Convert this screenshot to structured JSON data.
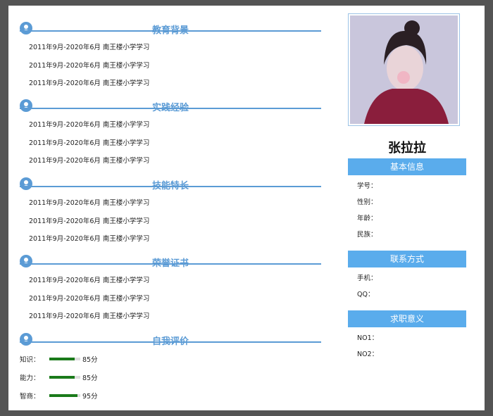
{
  "sections": [
    {
      "title": "教育背景",
      "items": [
        "2011年9月-2020年6月 南王楼小学学习",
        "2011年9月-2020年6月 南王楼小学学习",
        "2011年9月-2020年6月 南王楼小学学习"
      ]
    },
    {
      "title": "实践经验",
      "items": [
        "2011年9月-2020年6月 南王楼小学学习",
        "2011年9月-2020年6月 南王楼小学学习",
        "2011年9月-2020年6月 南王楼小学学习"
      ]
    },
    {
      "title": "技能特长",
      "items": [
        "2011年9月-2020年6月 南王楼小学学习",
        "2011年9月-2020年6月 南王楼小学学习",
        "2011年9月-2020年6月 南王楼小学学习"
      ]
    },
    {
      "title": "荣誉证书",
      "items": [
        "2011年9月-2020年6月 南王楼小学学习",
        "2011年9月-2020年6月 南王楼小学学习",
        "2011年9月-2020年6月 南王楼小学学习"
      ]
    }
  ],
  "self_eval": {
    "title": "自我评价",
    "labels": [
      "知识：",
      "能力：",
      "智商："
    ],
    "values": [
      85,
      85,
      95
    ],
    "value_labels": [
      "85分",
      "85分",
      "95分"
    ]
  },
  "profile": {
    "name": "张拉拉",
    "groups": [
      {
        "title": "基本信息",
        "fields": [
          "学号：",
          "性别：",
          "年龄：",
          "民族："
        ]
      },
      {
        "title": "联系方式",
        "fields": [
          "手机：",
          "QQ："
        ]
      },
      {
        "title": "求职意义",
        "fields": [
          "NO1：",
          "NO2："
        ]
      }
    ]
  }
}
